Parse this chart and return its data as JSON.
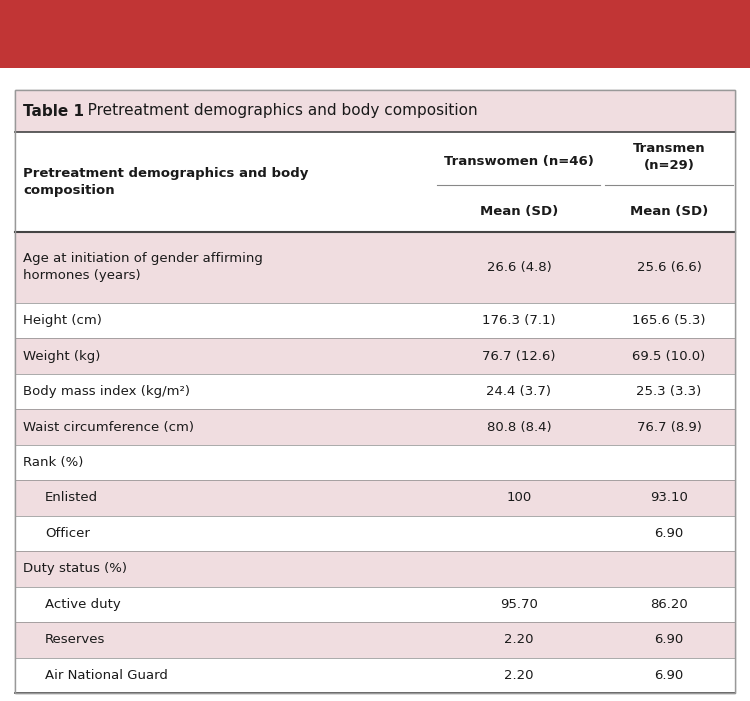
{
  "title_bold": "Table 1",
  "title_rest": "   Pretreatment demographics and body composition",
  "col0_header": "Pretreatment demographics and body\ncomposition",
  "col1_header_line1": "Transwomen (n=46)",
  "col2_header_line1": "Transmen\n(n=29)",
  "mean_sd": "Mean (SD)",
  "rows": [
    {
      "label": "Age at initiation of gender affirming\nhormones (years)",
      "tw": "26.6 (4.8)",
      "tm": "25.6 (6.6)",
      "shaded": true,
      "indent": false,
      "two_line": true
    },
    {
      "label": "Height (cm)",
      "tw": "176.3 (7.1)",
      "tm": "165.6 (5.3)",
      "shaded": false,
      "indent": false,
      "two_line": false
    },
    {
      "label": "Weight (kg)",
      "tw": "76.7 (12.6)",
      "tm": "69.5 (10.0)",
      "shaded": true,
      "indent": false,
      "two_line": false
    },
    {
      "label": "Body mass index (kg/m²)",
      "tw": "24.4 (3.7)",
      "tm": "25.3 (3.3)",
      "shaded": false,
      "indent": false,
      "two_line": false
    },
    {
      "label": "Waist circumference (cm)",
      "tw": "80.8 (8.4)",
      "tm": "76.7 (8.9)",
      "shaded": true,
      "indent": false,
      "two_line": false
    },
    {
      "label": "Rank (%)",
      "tw": "",
      "tm": "",
      "shaded": false,
      "indent": false,
      "two_line": false
    },
    {
      "label": "Enlisted",
      "tw": "100",
      "tm": "93.10",
      "shaded": true,
      "indent": true,
      "two_line": false
    },
    {
      "label": "Officer",
      "tw": "",
      "tm": "6.90",
      "shaded": false,
      "indent": true,
      "two_line": false
    },
    {
      "label": "Duty status (%)",
      "tw": "",
      "tm": "",
      "shaded": true,
      "indent": false,
      "two_line": false
    },
    {
      "label": "Active duty",
      "tw": "95.70",
      "tm": "86.20",
      "shaded": false,
      "indent": true,
      "two_line": false
    },
    {
      "label": "Reserves",
      "tw": "2.20",
      "tm": "6.90",
      "shaded": true,
      "indent": true,
      "two_line": false
    },
    {
      "label": "Air National Guard",
      "tw": "2.20",
      "tm": "6.90",
      "shaded": false,
      "indent": true,
      "two_line": false
    }
  ],
  "top_bar_color": "#c13535",
  "shaded_row_color": "#f0dde0",
  "title_bg_color": "#f0dde0",
  "border_color": "#888888",
  "thick_border_color": "#444444",
  "text_color": "#1a1a1a",
  "fig_bg_color": "#ffffff",
  "outer_border_color": "#999999",
  "font_family": "DejaVu Sans"
}
